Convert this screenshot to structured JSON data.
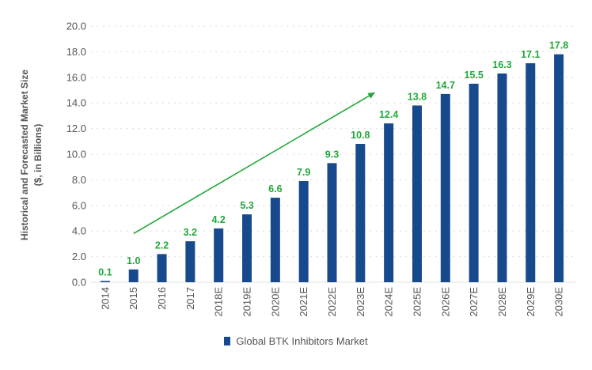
{
  "chart_data": {
    "type": "bar",
    "title": "",
    "xlabel": "",
    "ylabel": [
      "Historical and Forecasted Market Size",
      "($, in Billions)"
    ],
    "ylim": [
      0,
      20
    ],
    "yticks": [
      "0.0",
      "2.0",
      "4.0",
      "6.0",
      "8.0",
      "10.0",
      "12.0",
      "14.0",
      "16.0",
      "18.0",
      "20.0"
    ],
    "grid": "horizontal dotted",
    "categories": [
      "2014",
      "2015",
      "2016",
      "2017",
      "2018E",
      "2019E",
      "2020E",
      "2021E",
      "2022E",
      "2023E",
      "2024E",
      "2025E",
      "2026E",
      "2027E",
      "2028E",
      "2029E",
      "2030E"
    ],
    "series": [
      {
        "name": "Global BTK Inhibitors Market",
        "values": [
          0.1,
          1.0,
          2.2,
          3.2,
          4.2,
          5.3,
          6.6,
          7.9,
          9.3,
          10.8,
          12.4,
          13.8,
          14.7,
          15.5,
          16.3,
          17.1,
          17.8
        ],
        "labels": [
          "0.1",
          "1.0",
          "2.2",
          "3.2",
          "4.2",
          "5.3",
          "6.6",
          "7.9",
          "9.3",
          "10.8",
          "12.4",
          "13.8",
          "14.7",
          "15.5",
          "16.3",
          "17.1",
          "17.8"
        ]
      }
    ],
    "legend": {
      "position": "bottom",
      "entries": [
        "Global BTK Inhibitors Market"
      ]
    },
    "annotation": {
      "type": "trend-arrow",
      "from": {
        "category_index": 1,
        "y": 3.8
      },
      "to": {
        "category_index": 9.5,
        "y": 14.8
      }
    },
    "colors": {
      "bar": "#174a8c",
      "data_label": "#22a83a",
      "arrow": "#22a83a",
      "grid": "#d9d9d9",
      "text": "#555555"
    }
  }
}
